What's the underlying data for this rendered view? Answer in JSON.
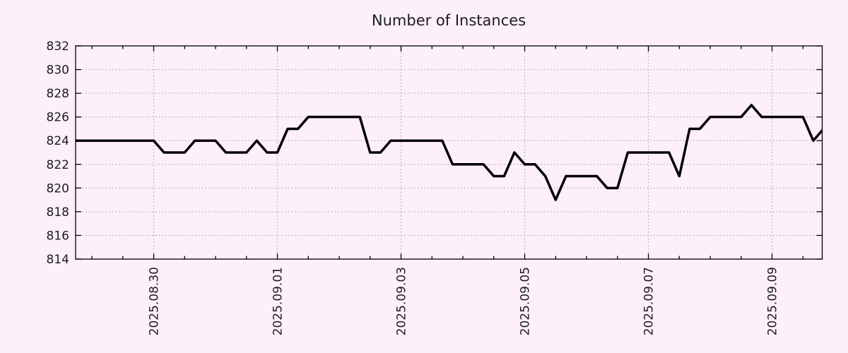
{
  "page": {
    "background": "#fdf0fa"
  },
  "chart_data": {
    "type": "line",
    "title": "Number of Instances",
    "xlabel": "",
    "ylabel": "",
    "ylim": [
      814,
      832
    ],
    "y_ticks": [
      814,
      816,
      818,
      820,
      822,
      824,
      826,
      828,
      830,
      832
    ],
    "x_labels": [
      {
        "text": "2025.08.30",
        "day_offset": 0
      },
      {
        "text": "2025.09.01",
        "day_offset": 2
      },
      {
        "text": "2025.09.03",
        "day_offset": 4
      },
      {
        "text": "2025.09.05",
        "day_offset": 6
      },
      {
        "text": "2025.09.07",
        "day_offset": 8
      },
      {
        "text": "2025.09.09",
        "day_offset": 10
      }
    ],
    "xlim_days": [
      -1.263,
      10.811
    ],
    "minor_tick_step_days": 0.5,
    "grid": true,
    "legend": "none",
    "colors": {
      "line": "#000000",
      "grid": "#a8a8a8",
      "axis": "#000000",
      "text": "#1c1c1c",
      "background": "#fdf0fa"
    },
    "series": [
      {
        "name": "instances",
        "color": "#000000",
        "start_day_offset": -1.3333,
        "step_days": 0.166667,
        "sample_interval": "4h, day offsets relative to 2025.08.30 00:00",
        "values": [
          824,
          824,
          824,
          824,
          824,
          824,
          824,
          824,
          824,
          823,
          823,
          823,
          824,
          824,
          824,
          823,
          823,
          823,
          824,
          823,
          823,
          825,
          825,
          826,
          826,
          826,
          826,
          826,
          826,
          823,
          823,
          824,
          824,
          824,
          824,
          824,
          824,
          822,
          822,
          822,
          822,
          821,
          821,
          823,
          822,
          822,
          821,
          819,
          821,
          821,
          821,
          821,
          820,
          820,
          823,
          823,
          823,
          823,
          823,
          821,
          825,
          825,
          826,
          826,
          826,
          826,
          827,
          826,
          826,
          826,
          826,
          826,
          824,
          825
        ]
      }
    ]
  }
}
